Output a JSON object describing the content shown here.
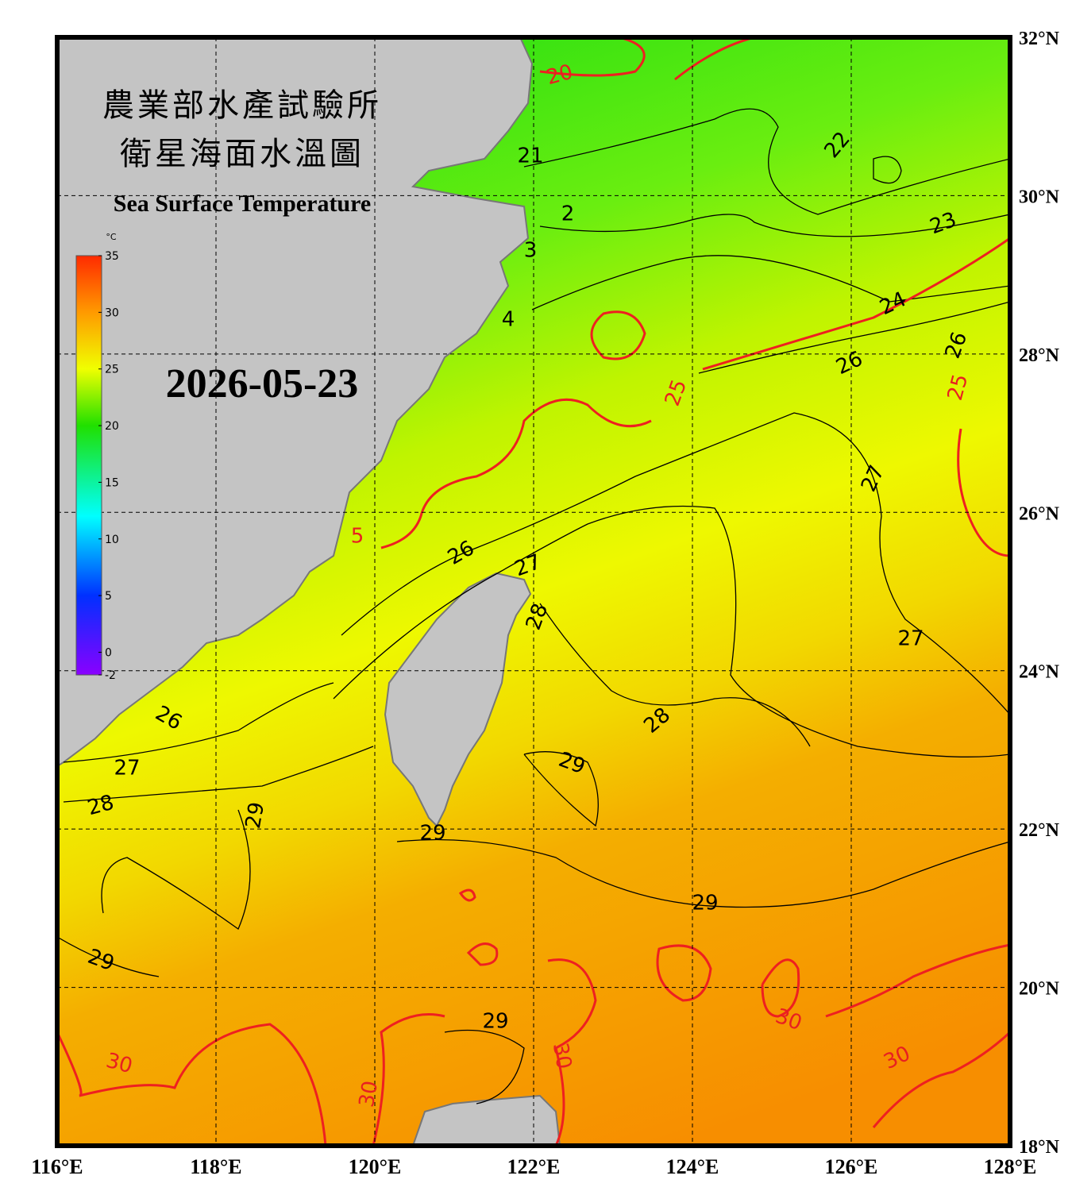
{
  "header": {
    "title_zh": "農業部水產試驗所",
    "subtitle_zh": "衛星海面水溫圖",
    "title_en": "Sea Surface Temperature",
    "date": "2026-05-23"
  },
  "colorbar": {
    "unit": "°C",
    "range": [
      -2,
      35
    ],
    "ticks": [
      35,
      30,
      25,
      20,
      15,
      10,
      5,
      0,
      -2
    ],
    "color_stops": [
      {
        "value": 35,
        "color": "#ff2a00"
      },
      {
        "value": 30,
        "color": "#ff9a00"
      },
      {
        "value": 25,
        "color": "#f0ff00"
      },
      {
        "value": 20,
        "color": "#20e000"
      },
      {
        "value": 12,
        "color": "#00ffff"
      },
      {
        "value": 5,
        "color": "#0030ff"
      },
      {
        "value": -2,
        "color": "#8a00ff"
      }
    ]
  },
  "map": {
    "lon_range": [
      116,
      128
    ],
    "lat_range": [
      18,
      32
    ],
    "lon_ticks": [
      {
        "value": 116,
        "label": "116°E"
      },
      {
        "value": 118,
        "label": "118°E"
      },
      {
        "value": 120,
        "label": "120°E"
      },
      {
        "value": 122,
        "label": "122°E"
      },
      {
        "value": 124,
        "label": "124°E"
      },
      {
        "value": 126,
        "label": "126°E"
      },
      {
        "value": 128,
        "label": "128°E"
      }
    ],
    "lat_ticks": [
      {
        "value": 18,
        "label": "18°N"
      },
      {
        "value": 20,
        "label": "20°N"
      },
      {
        "value": 22,
        "label": "22°N"
      },
      {
        "value": 24,
        "label": "24°N"
      },
      {
        "value": 26,
        "label": "26°N"
      },
      {
        "value": 28,
        "label": "28°N"
      },
      {
        "value": 30,
        "label": "30°N"
      },
      {
        "value": 32,
        "label": "32°N"
      }
    ]
  },
  "contour_labels": [
    {
      "text": "20",
      "color": "#e82020"
    },
    {
      "text": "21",
      "color": "#000000"
    },
    {
      "text": "22",
      "color": "#000000"
    },
    {
      "text": "2",
      "color": "#000000"
    },
    {
      "text": "23",
      "color": "#000000"
    },
    {
      "text": "3",
      "color": "#000000"
    },
    {
      "text": "24",
      "color": "#000000"
    },
    {
      "text": "4",
      "color": "#000000"
    },
    {
      "text": "26",
      "color": "#000000"
    },
    {
      "text": "26",
      "color": "#000000"
    },
    {
      "text": "25",
      "color": "#e82020"
    },
    {
      "text": "25",
      "color": "#e82020"
    },
    {
      "text": "27",
      "color": "#000000"
    },
    {
      "text": "5",
      "color": "#e82020"
    },
    {
      "text": "26",
      "color": "#000000"
    },
    {
      "text": "27",
      "color": "#000000"
    },
    {
      "text": "28",
      "color": "#000000"
    },
    {
      "text": "27",
      "color": "#000000"
    },
    {
      "text": "26",
      "color": "#000000"
    },
    {
      "text": "28",
      "color": "#000000"
    },
    {
      "text": "27",
      "color": "#000000"
    },
    {
      "text": "29",
      "color": "#000000"
    },
    {
      "text": "28",
      "color": "#000000"
    },
    {
      "text": "29",
      "color": "#000000"
    },
    {
      "text": "29",
      "color": "#000000"
    },
    {
      "text": "29",
      "color": "#000000"
    },
    {
      "text": "29",
      "color": "#000000"
    },
    {
      "text": "30",
      "color": "#e82020"
    },
    {
      "text": "29",
      "color": "#000000"
    },
    {
      "text": "30",
      "color": "#e82020"
    },
    {
      "text": "30",
      "color": "#e82020"
    },
    {
      "text": "30",
      "color": "#e82020"
    },
    {
      "text": "30",
      "color": "#e82020"
    }
  ]
}
